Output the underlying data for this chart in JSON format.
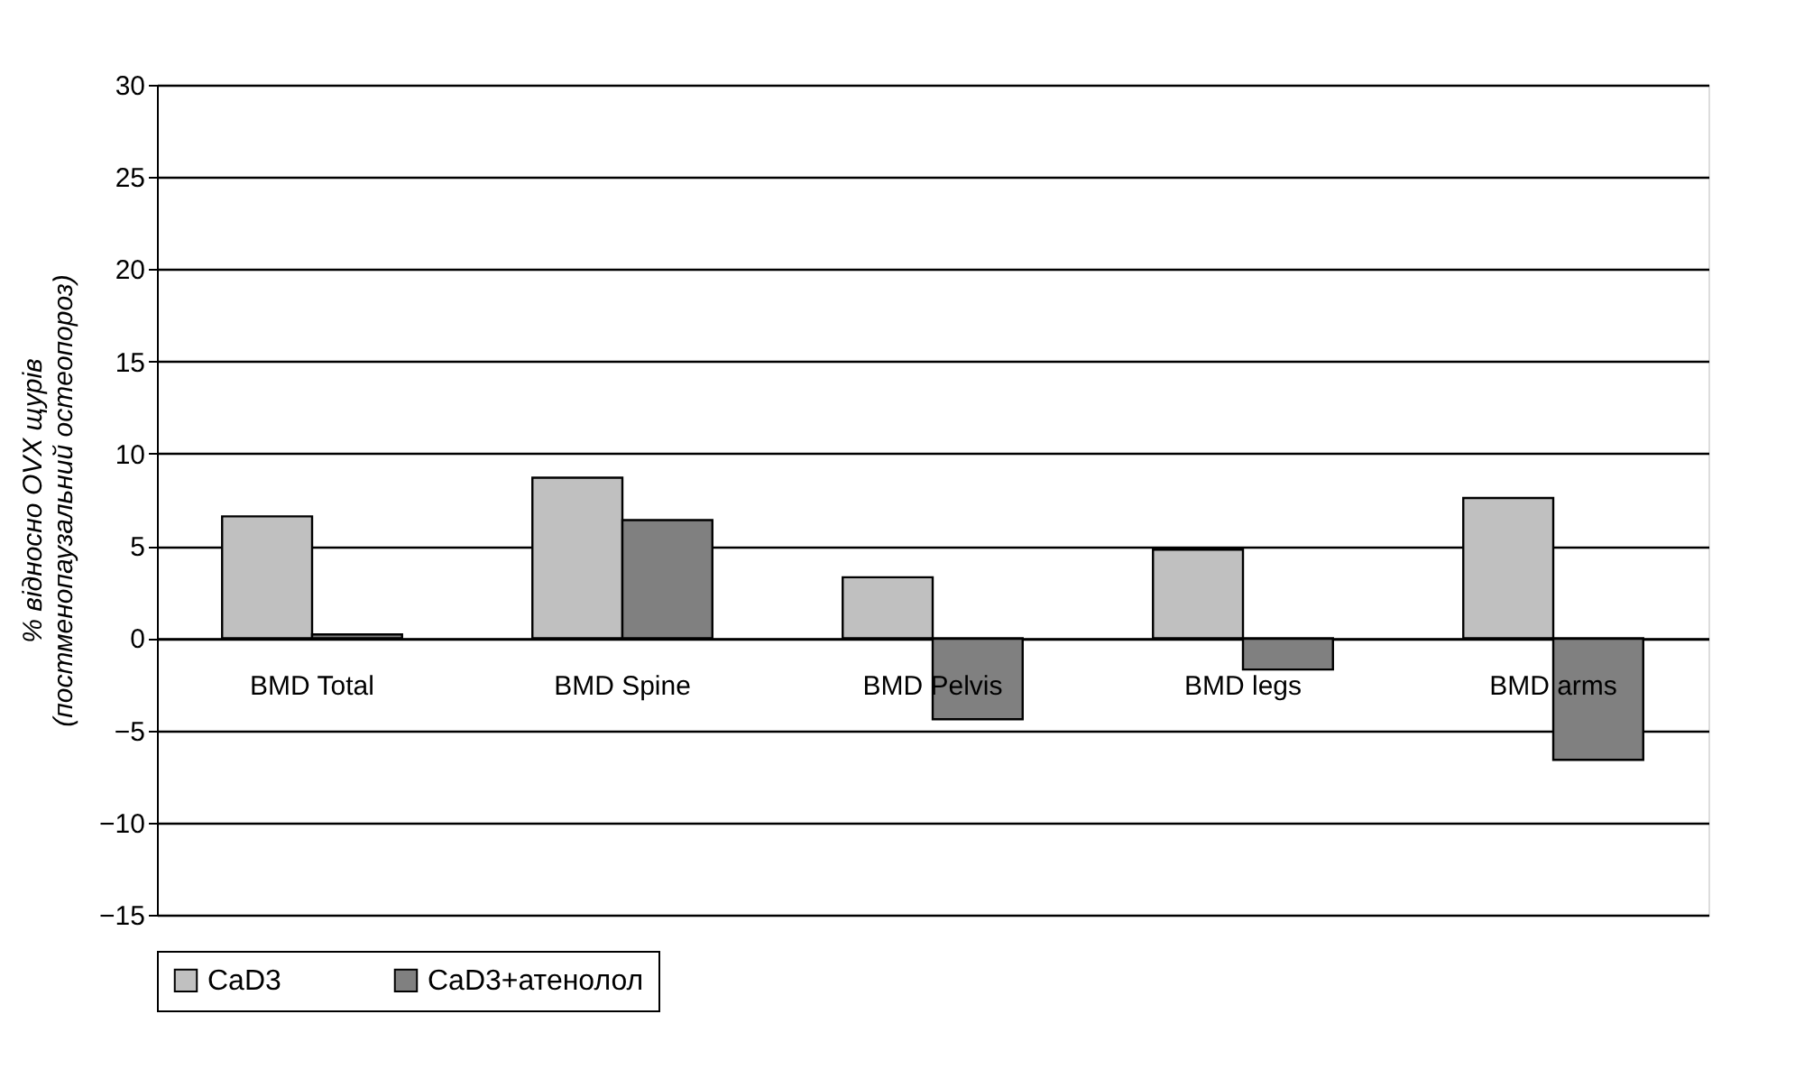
{
  "chart_data": {
    "type": "bar",
    "ylabel": "% відносно OVX щурів (постменопаузальний остеопороз)",
    "categories": [
      "BMD Total",
      "BMD Spine",
      "BMD Pelvis",
      "BMD  legs",
      "BMD arms"
    ],
    "series": [
      {
        "name": "CaD3",
        "color": "#c0c0c0",
        "values": [
          6.6,
          8.7,
          3.3,
          4.8,
          7.6
        ]
      },
      {
        "name": "CaD3+атенолол",
        "color": "#808080",
        "values": [
          0.2,
          6.4,
          -4.4,
          -1.7,
          -6.6
        ]
      }
    ],
    "ylim": [
      -15,
      30
    ],
    "yticks": [
      -15,
      -10,
      -5,
      0,
      5,
      10,
      15,
      20,
      25,
      30
    ],
    "grid": "y",
    "legend": "bottom"
  }
}
